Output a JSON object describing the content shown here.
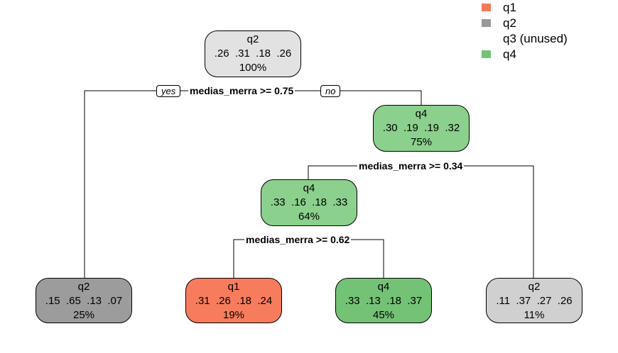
{
  "legend": [
    {
      "label": "q1",
      "color": "#f57a5b"
    },
    {
      "label": "q2",
      "color": "#9a9a9a"
    },
    {
      "label": "q3 (unused)",
      "color": ""
    },
    {
      "label": "q4",
      "color": "#74c276"
    }
  ],
  "nodes": {
    "root": {
      "cls": "q2",
      "probs": ".26  .31  .18  .26",
      "pct": "100%",
      "fill": "#e2e2e2"
    },
    "right": {
      "cls": "q4",
      "probs": ".30  .19  .19  .32",
      "pct": "75%",
      "fill": "#8bd08c"
    },
    "mid": {
      "cls": "q4",
      "probs": ".33  .16  .18  .33",
      "pct": "64%",
      "fill": "#8bd08c"
    },
    "leaf1": {
      "cls": "q2",
      "probs": ".15  .65  .13  .07",
      "pct": "25%",
      "fill": "#9c9c9c"
    },
    "leaf2": {
      "cls": "q1",
      "probs": ".31  .26  .18  .24",
      "pct": "19%",
      "fill": "#f77c5e"
    },
    "leaf3": {
      "cls": "q4",
      "probs": ".33  .13  .18  .37",
      "pct": "45%",
      "fill": "#74c276"
    },
    "leaf4": {
      "cls": "q2",
      "probs": ".11  .37  .27  .26",
      "pct": "11%",
      "fill": "#d0d0d0"
    }
  },
  "splits": {
    "s1": "medias_merra >= 0.75",
    "s2": "medias_merra >= 0.34",
    "s3": "medias_merra >= 0.62"
  },
  "yes_label": "yes",
  "no_label": "no"
}
